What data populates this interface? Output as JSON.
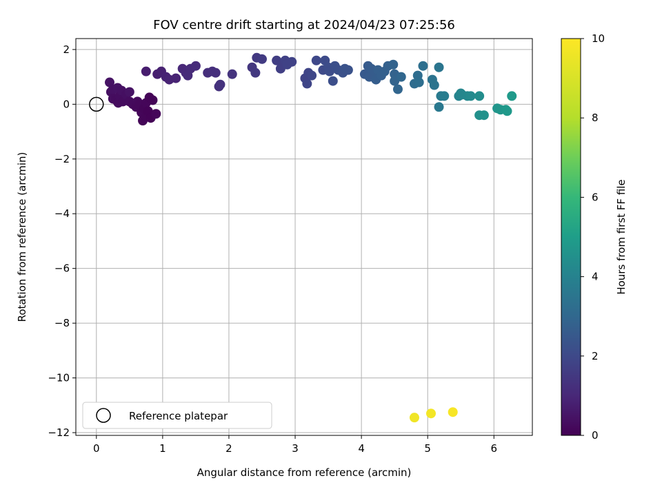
{
  "chart_data": {
    "type": "scatter",
    "title": "FOV centre drift starting at 2024/04/23 07:25:56",
    "xlabel": "Angular distance from reference (arcmin)",
    "ylabel": "Rotation from reference (arcmin)",
    "xlim": [
      -0.31,
      6.58
    ],
    "ylim": [
      -12.1,
      2.4
    ],
    "xticks": [
      0,
      1,
      2,
      3,
      4,
      5,
      6
    ],
    "yticks": [
      2,
      0,
      -2,
      -4,
      -6,
      -8,
      -10,
      -12
    ],
    "grid": true,
    "legend": {
      "placement": "lower-left",
      "entries": [
        "Reference platepar"
      ]
    },
    "colorbar": {
      "label": "Hours from first FF file",
      "range": [
        0,
        10
      ],
      "ticks": [
        0,
        2,
        4,
        6,
        8,
        10
      ],
      "colormap": "viridis"
    },
    "reference_point": {
      "x": 0,
      "y": 0
    },
    "points": [
      {
        "x": 0.2,
        "y": 0.8,
        "t": 0.5
      },
      {
        "x": 0.22,
        "y": 0.45,
        "t": 0.4
      },
      {
        "x": 0.25,
        "y": 0.55,
        "t": 0.45
      },
      {
        "x": 0.25,
        "y": 0.2,
        "t": 0.35
      },
      {
        "x": 0.3,
        "y": 0.15,
        "t": 0.3
      },
      {
        "x": 0.32,
        "y": 0.6,
        "t": 0.5
      },
      {
        "x": 0.33,
        "y": 0.05,
        "t": 0.3
      },
      {
        "x": 0.35,
        "y": 0.3,
        "t": 0.35
      },
      {
        "x": 0.38,
        "y": 0.5,
        "t": 0.45
      },
      {
        "x": 0.4,
        "y": 0.1,
        "t": 0.3
      },
      {
        "x": 0.45,
        "y": 0.35,
        "t": 0.4
      },
      {
        "x": 0.5,
        "y": 0.45,
        "t": 0.5
      },
      {
        "x": 0.5,
        "y": 0.1,
        "t": 0.3
      },
      {
        "x": 0.55,
        "y": 0.0,
        "t": 0.25
      },
      {
        "x": 0.6,
        "y": -0.1,
        "t": 0.2
      },
      {
        "x": 0.62,
        "y": 0.1,
        "t": 0.25
      },
      {
        "x": 0.65,
        "y": 0.0,
        "t": 0.2
      },
      {
        "x": 0.68,
        "y": -0.3,
        "t": 0.15
      },
      {
        "x": 0.7,
        "y": -0.6,
        "t": 0.1
      },
      {
        "x": 0.72,
        "y": -0.15,
        "t": 0.1
      },
      {
        "x": 0.75,
        "y": 0.05,
        "t": 0.15
      },
      {
        "x": 0.75,
        "y": -0.45,
        "t": 0.1
      },
      {
        "x": 0.78,
        "y": -0.25,
        "t": 0.05
      },
      {
        "x": 0.8,
        "y": 0.25,
        "t": 0.1
      },
      {
        "x": 0.82,
        "y": -0.5,
        "t": 0.05
      },
      {
        "x": 0.85,
        "y": 0.15,
        "t": 0.1
      },
      {
        "x": 0.9,
        "y": -0.35,
        "t": 0.15
      },
      {
        "x": 0.75,
        "y": 1.2,
        "t": 0.8
      },
      {
        "x": 0.92,
        "y": 1.1,
        "t": 0.85
      },
      {
        "x": 0.98,
        "y": 1.2,
        "t": 0.9
      },
      {
        "x": 1.05,
        "y": 1.0,
        "t": 0.95
      },
      {
        "x": 1.1,
        "y": 0.9,
        "t": 1.0
      },
      {
        "x": 1.2,
        "y": 0.95,
        "t": 1.0
      },
      {
        "x": 1.3,
        "y": 1.3,
        "t": 1.1
      },
      {
        "x": 1.35,
        "y": 1.15,
        "t": 1.15
      },
      {
        "x": 1.38,
        "y": 1.05,
        "t": 1.2
      },
      {
        "x": 1.42,
        "y": 1.3,
        "t": 1.2
      },
      {
        "x": 1.5,
        "y": 1.4,
        "t": 1.25
      },
      {
        "x": 1.68,
        "y": 1.15,
        "t": 1.3
      },
      {
        "x": 1.75,
        "y": 1.2,
        "t": 1.35
      },
      {
        "x": 1.8,
        "y": 1.15,
        "t": 1.35
      },
      {
        "x": 1.85,
        "y": 0.65,
        "t": 1.4
      },
      {
        "x": 1.87,
        "y": 0.72,
        "t": 1.45
      },
      {
        "x": 2.05,
        "y": 1.1,
        "t": 1.5
      },
      {
        "x": 2.35,
        "y": 1.35,
        "t": 1.6
      },
      {
        "x": 2.4,
        "y": 1.15,
        "t": 1.65
      },
      {
        "x": 2.42,
        "y": 1.7,
        "t": 1.7
      },
      {
        "x": 2.5,
        "y": 1.65,
        "t": 1.75
      },
      {
        "x": 2.72,
        "y": 1.6,
        "t": 1.85
      },
      {
        "x": 2.78,
        "y": 1.3,
        "t": 1.9
      },
      {
        "x": 2.8,
        "y": 1.45,
        "t": 1.9
      },
      {
        "x": 2.85,
        "y": 1.6,
        "t": 1.95
      },
      {
        "x": 2.88,
        "y": 1.45,
        "t": 2.0
      },
      {
        "x": 2.95,
        "y": 1.55,
        "t": 2.0
      },
      {
        "x": 3.15,
        "y": 0.95,
        "t": 2.05
      },
      {
        "x": 3.18,
        "y": 0.75,
        "t": 2.1
      },
      {
        "x": 3.2,
        "y": 1.15,
        "t": 2.1
      },
      {
        "x": 3.25,
        "y": 1.05,
        "t": 2.15
      },
      {
        "x": 3.32,
        "y": 1.6,
        "t": 2.2
      },
      {
        "x": 3.42,
        "y": 1.25,
        "t": 2.25
      },
      {
        "x": 3.45,
        "y": 1.6,
        "t": 2.3
      },
      {
        "x": 3.5,
        "y": 1.35,
        "t": 2.35
      },
      {
        "x": 3.52,
        "y": 1.2,
        "t": 2.35
      },
      {
        "x": 3.57,
        "y": 0.85,
        "t": 2.4
      },
      {
        "x": 3.6,
        "y": 1.4,
        "t": 2.45
      },
      {
        "x": 3.65,
        "y": 1.25,
        "t": 2.45
      },
      {
        "x": 3.72,
        "y": 1.15,
        "t": 2.5
      },
      {
        "x": 3.75,
        "y": 1.3,
        "t": 2.55
      },
      {
        "x": 3.8,
        "y": 1.25,
        "t": 2.55
      },
      {
        "x": 4.05,
        "y": 1.1,
        "t": 2.8
      },
      {
        "x": 4.1,
        "y": 1.4,
        "t": 2.85
      },
      {
        "x": 4.12,
        "y": 1.0,
        "t": 2.85
      },
      {
        "x": 4.15,
        "y": 1.3,
        "t": 2.9
      },
      {
        "x": 4.2,
        "y": 1.2,
        "t": 2.9
      },
      {
        "x": 4.22,
        "y": 0.9,
        "t": 2.95
      },
      {
        "x": 4.25,
        "y": 1.25,
        "t": 3.0
      },
      {
        "x": 4.3,
        "y": 1.05,
        "t": 3.0
      },
      {
        "x": 4.35,
        "y": 1.2,
        "t": 3.05
      },
      {
        "x": 4.4,
        "y": 1.4,
        "t": 3.1
      },
      {
        "x": 4.48,
        "y": 1.45,
        "t": 3.15
      },
      {
        "x": 4.5,
        "y": 1.1,
        "t": 3.15
      },
      {
        "x": 4.5,
        "y": 0.85,
        "t": 3.2
      },
      {
        "x": 4.55,
        "y": 0.55,
        "t": 3.25
      },
      {
        "x": 4.6,
        "y": 1.0,
        "t": 3.3
      },
      {
        "x": 4.8,
        "y": 0.75,
        "t": 3.5
      },
      {
        "x": 4.85,
        "y": 1.05,
        "t": 3.55
      },
      {
        "x": 4.87,
        "y": 0.8,
        "t": 3.6
      },
      {
        "x": 4.93,
        "y": 1.4,
        "t": 3.65
      },
      {
        "x": 5.07,
        "y": 0.9,
        "t": 3.8
      },
      {
        "x": 5.1,
        "y": 0.7,
        "t": 3.85
      },
      {
        "x": 5.17,
        "y": 1.35,
        "t": 3.9
      },
      {
        "x": 5.17,
        "y": -0.1,
        "t": 4.0
      },
      {
        "x": 5.2,
        "y": 0.3,
        "t": 4.1
      },
      {
        "x": 5.25,
        "y": 0.3,
        "t": 4.2
      },
      {
        "x": 5.47,
        "y": 0.3,
        "t": 4.5
      },
      {
        "x": 5.5,
        "y": 0.4,
        "t": 4.6
      },
      {
        "x": 5.52,
        "y": 0.35,
        "t": 4.6
      },
      {
        "x": 5.6,
        "y": 0.3,
        "t": 4.7
      },
      {
        "x": 5.65,
        "y": 0.3,
        "t": 4.75
      },
      {
        "x": 5.78,
        "y": 0.3,
        "t": 4.9
      },
      {
        "x": 5.78,
        "y": -0.4,
        "t": 5.0
      },
      {
        "x": 5.85,
        "y": -0.4,
        "t": 5.05
      },
      {
        "x": 6.05,
        "y": -0.15,
        "t": 5.2
      },
      {
        "x": 6.1,
        "y": -0.2,
        "t": 5.25
      },
      {
        "x": 6.18,
        "y": -0.2,
        "t": 5.3
      },
      {
        "x": 6.2,
        "y": -0.25,
        "t": 5.35
      },
      {
        "x": 6.27,
        "y": 0.3,
        "t": 5.4
      },
      {
        "x": 4.8,
        "y": -11.45,
        "t": 9.8
      },
      {
        "x": 5.05,
        "y": -11.3,
        "t": 9.85
      },
      {
        "x": 5.38,
        "y": -11.25,
        "t": 9.9
      }
    ]
  }
}
